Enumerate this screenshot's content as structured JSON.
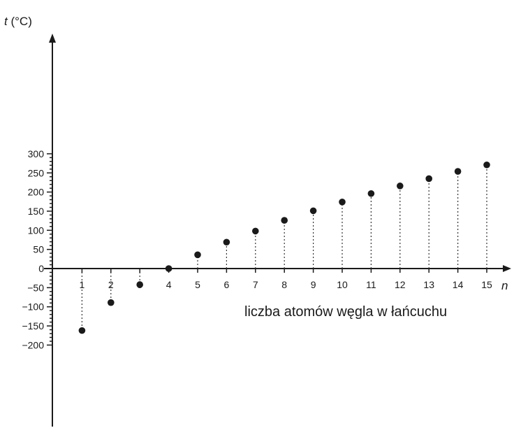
{
  "chart_data": {
    "type": "scatter",
    "title": "",
    "ylabel_var": "t",
    "ylabel_unit": " (°C)",
    "x_axis_var": "n",
    "xlabel": "liczba atomów węgla w łańcuchu",
    "x": [
      1,
      2,
      3,
      4,
      5,
      6,
      7,
      8,
      9,
      10,
      11,
      12,
      13,
      14,
      15
    ],
    "values": [
      -162,
      -89,
      -42,
      0,
      36,
      69,
      98,
      126,
      151,
      174,
      196,
      216,
      235,
      254,
      271
    ],
    "xticks": [
      1,
      2,
      3,
      4,
      5,
      6,
      7,
      8,
      9,
      10,
      11,
      12,
      13,
      14,
      15
    ],
    "yticks": [
      -200,
      -150,
      -100,
      -50,
      0,
      50,
      100,
      150,
      200,
      250,
      300
    ],
    "xlim": [
      0,
      15.8
    ],
    "ylim": [
      -200,
      300
    ],
    "grid": false,
    "drop_lines": true,
    "point_color": "#1a1a1a"
  }
}
